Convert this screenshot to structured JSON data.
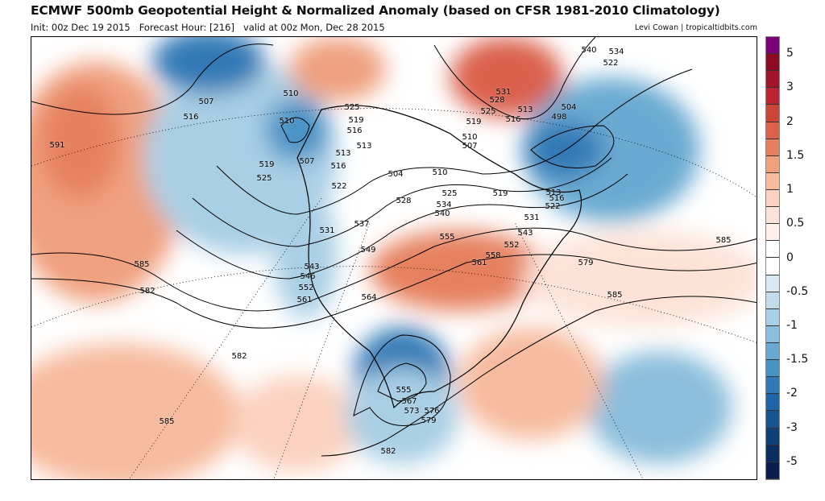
{
  "header": {
    "title": "ECMWF 500mb Geopotential Height & Normalized Anomaly (based on CFSR 1981-2010 Climatology)",
    "init": "Init: 00z Dec 19 2015",
    "forecast_hour": "Forecast Hour: [216]",
    "valid": "valid at 00z Mon, Dec 28 2015",
    "credit": "Levi Cowan | tropicaltidbits.com"
  },
  "colorbar": {
    "colors": [
      "#7a0177",
      "#8c0b20",
      "#a51327",
      "#ba232f",
      "#cb4539",
      "#da614b",
      "#e6815f",
      "#f0a07f",
      "#f7bb9f",
      "#fbd2bf",
      "#fde3d7",
      "#fff1ea",
      "#ffffff",
      "#ffffff",
      "#d9e9f2",
      "#c3dcec",
      "#a9cfe5",
      "#8bbedc",
      "#6aaad2",
      "#4893c6",
      "#3079b6",
      "#2064a8",
      "#17548f",
      "#0e4075",
      "#0a2e5d",
      "#0a1d4e"
    ],
    "labels": [
      "5",
      "3",
      "2",
      "1.5",
      "1",
      "0.5",
      "0",
      "-0.5",
      "-1",
      "-1.5",
      "-2",
      "-3",
      "-5"
    ]
  },
  "contour_labels": [
    "591",
    "507",
    "516",
    "510",
    "510",
    "519",
    "525",
    "507",
    "525",
    "519",
    "516",
    "513",
    "513",
    "516",
    "504",
    "510",
    "522",
    "528",
    "534",
    "525",
    "540",
    "519",
    "537",
    "531",
    "549",
    "555",
    "561",
    "558",
    "552",
    "543",
    "531",
    "522",
    "516",
    "513",
    "510",
    "507",
    "519",
    "525",
    "528",
    "531",
    "513",
    "516",
    "540",
    "534",
    "522",
    "504",
    "498",
    "585",
    "579",
    "585",
    "585",
    "582",
    "582",
    "585",
    "543",
    "546",
    "552",
    "561",
    "564",
    "555",
    "567",
    "573",
    "576",
    "579",
    "582"
  ]
}
